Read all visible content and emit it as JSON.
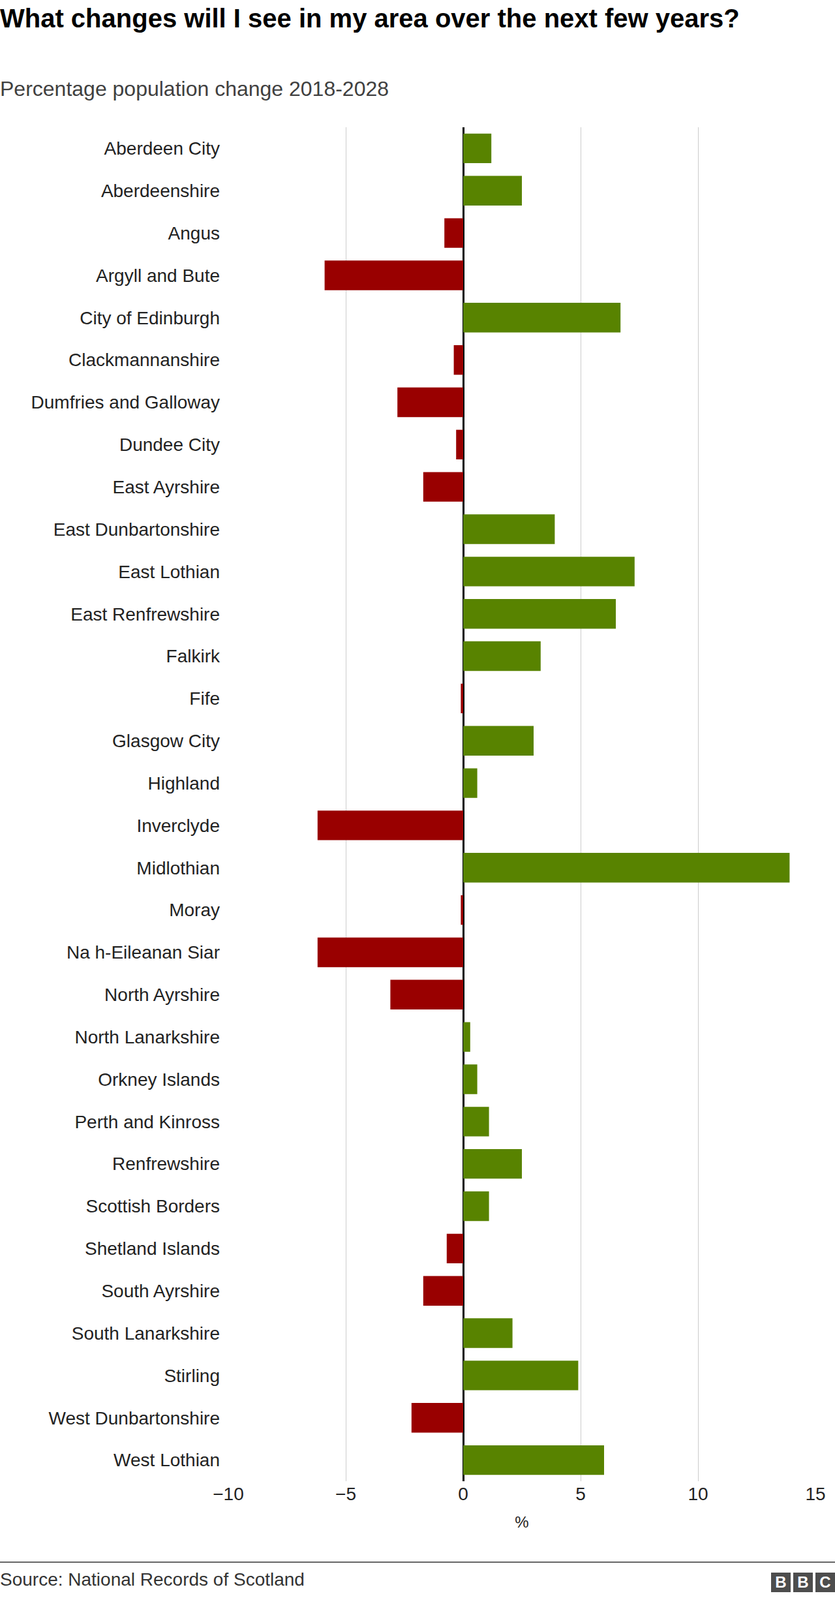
{
  "chart_data": {
    "type": "bar",
    "orientation": "horizontal",
    "title": "What changes will I see in my area over the next few years?",
    "subtitle": "Percentage population change 2018-2028",
    "xlabel": "%",
    "source": "Source: National Records of Scotland",
    "logo": "BBC",
    "categories": [
      "Aberdeen City",
      "Aberdeenshire",
      "Angus",
      "Argyll and Bute",
      "City of Edinburgh",
      "Clackmannanshire",
      "Dumfries and Galloway",
      "Dundee City",
      "East Ayrshire",
      "East Dunbartonshire",
      "East Lothian",
      "East Renfrewshire",
      "Falkirk",
      "Fife",
      "Glasgow City",
      "Highland",
      "Inverclyde",
      "Midlothian",
      "Moray",
      "Na h-Eileanan Siar",
      "North Ayrshire",
      "North Lanarkshire",
      "Orkney Islands",
      "Perth and Kinross",
      "Renfrewshire",
      "Scottish Borders",
      "Shetland Islands",
      "South Ayrshire",
      "South Lanarkshire",
      "Stirling",
      "West Dunbartonshire",
      "West Lothian"
    ],
    "values": [
      1.2,
      2.5,
      -0.8,
      -5.9,
      6.7,
      -0.4,
      -2.8,
      -0.3,
      -1.7,
      3.9,
      7.3,
      6.5,
      3.3,
      -0.1,
      3.0,
      0.6,
      -6.2,
      13.9,
      -0.1,
      -6.2,
      -3.1,
      0.3,
      0.6,
      1.1,
      2.5,
      1.1,
      -0.7,
      -1.7,
      2.1,
      4.9,
      -2.2,
      6.0
    ],
    "colors": [
      "#588300",
      "#588300",
      "#990000",
      "#990000",
      "#588300",
      "#990000",
      "#990000",
      "#990000",
      "#990000",
      "#588300",
      "#588300",
      "#588300",
      "#588300",
      "#990000",
      "#588300",
      "#588300",
      "#990000",
      "#588300",
      "#990000",
      "#990000",
      "#990000",
      "#588300",
      "#588300",
      "#588300",
      "#588300",
      "#588300",
      "#990000",
      "#990000",
      "#588300",
      "#588300",
      "#990000",
      "#588300"
    ],
    "xlim": [
      -10,
      15
    ],
    "xticks": [
      {
        "value": -10,
        "label": "−10"
      },
      {
        "value": -5,
        "label": "−5"
      },
      0,
      5,
      10,
      15
    ],
    "grid": true
  }
}
